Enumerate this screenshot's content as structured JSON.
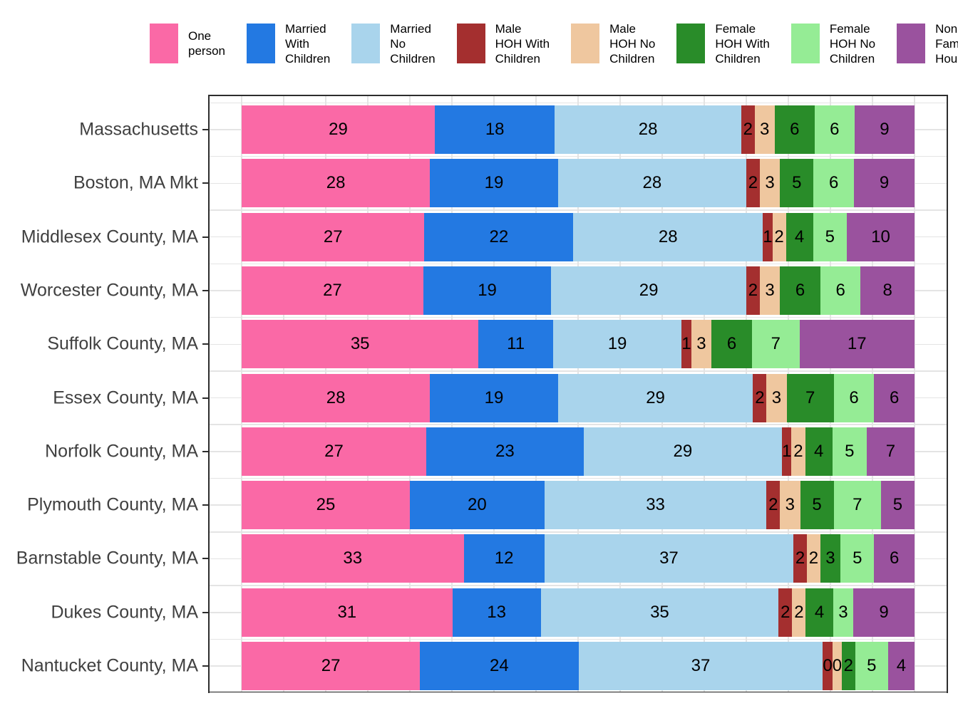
{
  "chart_data": {
    "type": "bar",
    "variant": "horizontal-stacked-percent",
    "orientation": "horizontal",
    "xlim": [
      0,
      100
    ],
    "grid": "light-gray, vertical every 6.25 units and horizontal at/between category centers",
    "legend_position": "top",
    "value_labels": "inside-center, black",
    "categories": [
      "Massachusetts",
      "Boston, MA Mkt",
      "Middlesex County, MA",
      "Worcester County, MA",
      "Suffolk County, MA",
      "Essex County, MA",
      "Norfolk County, MA",
      "Plymouth County, MA",
      "Barnstable County, MA",
      "Dukes County, MA",
      "Nantucket County, MA"
    ],
    "series": [
      {
        "name": "One person",
        "color": "#FA69A6",
        "values": [
          29,
          28,
          27,
          27,
          35,
          28,
          27,
          25,
          33,
          31,
          27
        ]
      },
      {
        "name": "Married With Children",
        "color": "#2379E2",
        "values": [
          18,
          19,
          22,
          19,
          11,
          19,
          23,
          20,
          12,
          13,
          24
        ]
      },
      {
        "name": "Married No Children",
        "color": "#A9D4EC",
        "values": [
          28,
          28,
          28,
          29,
          19,
          29,
          29,
          33,
          37,
          35,
          37
        ]
      },
      {
        "name": "Male HOH With Children",
        "color": "#A42F2F",
        "values": [
          2,
          2,
          1,
          2,
          1,
          2,
          1,
          2,
          2,
          2,
          0
        ]
      },
      {
        "name": "Male HOH No Children",
        "color": "#EFC79F",
        "values": [
          3,
          3,
          2,
          3,
          3,
          3,
          2,
          3,
          2,
          2,
          0
        ]
      },
      {
        "name": "Female HOH With Children",
        "color": "#298C29",
        "values": [
          6,
          5,
          4,
          6,
          6,
          7,
          4,
          5,
          3,
          4,
          2
        ]
      },
      {
        "name": "Female HOH No Children",
        "color": "#95EC95",
        "values": [
          6,
          6,
          5,
          6,
          7,
          6,
          5,
          7,
          5,
          3,
          5
        ]
      },
      {
        "name": "Non Family Household",
        "color": "#9A529E",
        "values": [
          9,
          9,
          10,
          8,
          17,
          6,
          7,
          5,
          6,
          9,
          4
        ]
      }
    ]
  },
  "legend": {
    "items": [
      {
        "lines": [
          "One",
          "person"
        ]
      },
      {
        "lines": [
          "Married",
          "With",
          "Children"
        ]
      },
      {
        "lines": [
          "Married",
          "No",
          "Children"
        ]
      },
      {
        "lines": [
          "Male",
          "HOH With",
          "Children"
        ]
      },
      {
        "lines": [
          "Male",
          "HOH No",
          "Children"
        ]
      },
      {
        "lines": [
          "Female",
          "HOH With",
          "Children"
        ]
      },
      {
        "lines": [
          "Female",
          "HOH No",
          "Children"
        ]
      },
      {
        "lines": [
          "Non",
          "Family",
          "Household"
        ]
      }
    ]
  },
  "style": {
    "panel_border_color": "#2d2d2d",
    "grid_color": "#e4e4e4",
    "axis_text_color": "#404040",
    "bar_label_color": "#000000",
    "background": "#ffffff"
  }
}
